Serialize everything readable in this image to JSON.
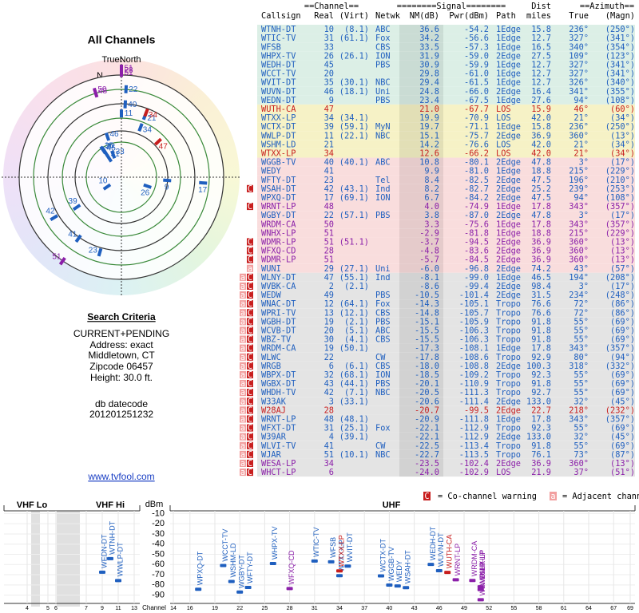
{
  "left": {
    "title": "All Channels",
    "compass": "TrueNorth",
    "north": "N",
    "criteria_title": "Search Criteria",
    "criteria": [
      "CURRENT+PENDING",
      "Address: exact",
      "Middletown, CT",
      "Zipcode 06457",
      "Height: 30.0 ft."
    ],
    "datecode_label": "db datecode",
    "datecode": "201201251232",
    "link": "www.tvfool.com"
  },
  "table": {
    "group_headers": [
      "==Channel==",
      "========Signal========",
      "Dist",
      "==Azimuth=="
    ],
    "headers": {
      "call": "Callsign",
      "real": "Real",
      "virt": "(Virt)",
      "net": "Netwk",
      "nm": "NM(dB)",
      "pwr": "Pwr(dBm)",
      "path": "Path",
      "dist": "miles",
      "true": "True",
      "magn": "(Magn)"
    },
    "rows": [
      {
        "call": "WTNH-DT",
        "real": "10",
        "virt": "(8.1)",
        "net": "ABC",
        "nm": "36.6",
        "pwr": "-54.2",
        "path": "1Edge",
        "dist": "15.8",
        "true": "236°",
        "magn": "(250°)",
        "color": "#1f5fbf",
        "warn": []
      },
      {
        "call": "WTIC-TV",
        "real": "31",
        "virt": "(61.1)",
        "net": "Fox",
        "nm": "34.2",
        "pwr": "-56.6",
        "path": "1Edge",
        "dist": "12.7",
        "true": "327°",
        "magn": "(341°)",
        "color": "#1f5fbf",
        "warn": []
      },
      {
        "call": "WFSB",
        "real": "33",
        "net": "CBS",
        "nm": "33.5",
        "pwr": "-57.3",
        "path": "1Edge",
        "dist": "16.5",
        "true": "340°",
        "magn": "(354°)",
        "color": "#1f5fbf",
        "warn": []
      },
      {
        "call": "WHPX-TV",
        "real": "26",
        "virt": "(26.1)",
        "net": "ION",
        "nm": "31.9",
        "pwr": "-59.0",
        "path": "2Edge",
        "dist": "27.5",
        "true": "109°",
        "magn": "(123°)",
        "color": "#1f5fbf",
        "warn": []
      },
      {
        "call": "WEDH-DT",
        "real": "45",
        "net": "PBS",
        "nm": "30.9",
        "pwr": "-59.9",
        "path": "1Edge",
        "dist": "12.7",
        "true": "327°",
        "magn": "(341°)",
        "color": "#1f5fbf",
        "warn": []
      },
      {
        "call": "WCCT-TV",
        "real": "20",
        "nm": "29.8",
        "pwr": "-61.0",
        "path": "1Edge",
        "dist": "12.7",
        "true": "327°",
        "magn": "(341°)",
        "color": "#1f5fbf",
        "warn": []
      },
      {
        "call": "WVIT-DT",
        "real": "35",
        "virt": "(30.1)",
        "net": "NBC",
        "nm": "29.4",
        "pwr": "-61.5",
        "path": "1Edge",
        "dist": "12.7",
        "true": "326°",
        "magn": "(340°)",
        "color": "#1f5fbf",
        "warn": []
      },
      {
        "call": "WUVN-DT",
        "real": "46",
        "virt": "(18.1)",
        "net": "Uni",
        "nm": "24.8",
        "pwr": "-66.0",
        "path": "2Edge",
        "dist": "16.4",
        "true": "341°",
        "magn": "(355°)",
        "color": "#1f5fbf",
        "warn": []
      },
      {
        "call": "WEDN-DT",
        "real": "9",
        "net": "PBS",
        "nm": "23.4",
        "pwr": "-67.5",
        "path": "1Edge",
        "dist": "27.6",
        "true": "94°",
        "magn": "(108°)",
        "color": "#1f5fbf",
        "warn": []
      },
      {
        "call": "WUTH-CA",
        "real": "47",
        "nm": "21.0",
        "pwr": "-67.7",
        "path": "LOS",
        "dist": "15.9",
        "true": "46°",
        "magn": "(60°)",
        "color": "#c81e1e",
        "warn": []
      },
      {
        "call": "WTXX-LP",
        "real": "34",
        "virt": "(34.1)",
        "nm": "19.9",
        "pwr": "-70.9",
        "path": "LOS",
        "dist": "42.0",
        "true": "21°",
        "magn": "(34°)",
        "color": "#1f5fbf",
        "warn": []
      },
      {
        "call": "WCTX-DT",
        "real": "39",
        "virt": "(59.1)",
        "net": "MyN",
        "nm": "19.7",
        "pwr": "-71.1",
        "path": "1Edge",
        "dist": "15.8",
        "true": "236°",
        "magn": "(250°)",
        "color": "#1f5fbf",
        "warn": []
      },
      {
        "call": "WWLP-DT",
        "real": "11",
        "virt": "(22.1)",
        "net": "NBC",
        "nm": "15.1",
        "pwr": "-75.7",
        "path": "2Edge",
        "dist": "36.9",
        "true": "360°",
        "magn": "(13°)",
        "color": "#1f5fbf",
        "warn": []
      },
      {
        "call": "WSHM-LD",
        "real": "21",
        "nm": "14.2",
        "pwr": "-76.6",
        "path": "LOS",
        "dist": "42.0",
        "true": "21°",
        "magn": "(34°)",
        "color": "#1f5fbf",
        "warn": []
      },
      {
        "call": "WTXX-LP",
        "real": "34",
        "nm": "12.6",
        "pwr": "-66.2",
        "path": "LOS",
        "dist": "42.0",
        "true": "21°",
        "magn": "(34°)",
        "color": "#c81e1e",
        "warn": []
      },
      {
        "call": "WGGB-TV",
        "real": "40",
        "virt": "(40.1)",
        "net": "ABC",
        "nm": "10.8",
        "pwr": "-80.1",
        "path": "2Edge",
        "dist": "47.8",
        "true": "3°",
        "magn": "(17°)",
        "color": "#1f5fbf",
        "warn": []
      },
      {
        "call": "WEDY",
        "real": "41",
        "nm": "9.9",
        "pwr": "-81.0",
        "path": "1Edge",
        "dist": "18.8",
        "true": "215°",
        "magn": "(229°)",
        "color": "#1f5fbf",
        "warn": []
      },
      {
        "call": "WFTY-DT",
        "real": "23",
        "net": "Tel",
        "nm": "8.4",
        "pwr": "-82.5",
        "path": "2Edge",
        "dist": "47.5",
        "true": "196°",
        "magn": "(210°)",
        "color": "#1f5fbf",
        "warn": []
      },
      {
        "call": "WSAH-DT",
        "real": "42",
        "virt": "(43.1)",
        "net": "Ind",
        "nm": "8.2",
        "pwr": "-82.7",
        "path": "2Edge",
        "dist": "25.2",
        "true": "239°",
        "magn": "(253°)",
        "color": "#1f5fbf",
        "warn": [
          "C"
        ]
      },
      {
        "call": "WPXQ-DT",
        "real": "17",
        "virt": "(69.1)",
        "net": "ION",
        "nm": "6.7",
        "pwr": "-84.2",
        "path": "2Edge",
        "dist": "47.5",
        "true": "94°",
        "magn": "(108°)",
        "color": "#1f5fbf",
        "warn": []
      },
      {
        "call": "WRNT-LP",
        "real": "48",
        "nm": "4.0",
        "pwr": "-74.9",
        "path": "1Edge",
        "dist": "17.8",
        "true": "343°",
        "magn": "(357°)",
        "color": "#8b1fa9",
        "warn": [
          "C"
        ]
      },
      {
        "call": "WGBY-DT",
        "real": "22",
        "virt": "(57.1)",
        "net": "PBS",
        "nm": "3.8",
        "pwr": "-87.0",
        "path": "2Edge",
        "dist": "47.8",
        "true": "3°",
        "magn": "(17°)",
        "color": "#1f5fbf",
        "warn": []
      },
      {
        "call": "WRDM-CA",
        "real": "50",
        "nm": "3.3",
        "pwr": "-75.6",
        "path": "1Edge",
        "dist": "17.8",
        "true": "343°",
        "magn": "(357°)",
        "color": "#8b1fa9",
        "warn": []
      },
      {
        "call": "WNHX-LP",
        "real": "51",
        "nm": "-2.9",
        "pwr": "-81.8",
        "path": "1Edge",
        "dist": "18.8",
        "true": "215°",
        "magn": "(229°)",
        "color": "#8b1fa9",
        "warn": []
      },
      {
        "call": "WDMR-LP",
        "real": "51",
        "virt": "(51.1)",
        "nm": "-3.7",
        "pwr": "-94.5",
        "path": "2Edge",
        "dist": "36.9",
        "true": "360°",
        "magn": "(13°)",
        "color": "#8b1fa9",
        "warn": [
          "C"
        ]
      },
      {
        "call": "WFXQ-CD",
        "real": "28",
        "nm": "-4.8",
        "pwr": "-83.6",
        "path": "2Edge",
        "dist": "36.9",
        "true": "360°",
        "magn": "(13°)",
        "color": "#8b1fa9",
        "warn": [
          "C"
        ]
      },
      {
        "call": "WDMR-LP",
        "real": "51",
        "nm": "-5.7",
        "pwr": "-84.5",
        "path": "2Edge",
        "dist": "36.9",
        "true": "360°",
        "magn": "(13°)",
        "color": "#8b1fa9",
        "warn": [
          "C"
        ]
      },
      {
        "call": "WUNI",
        "real": "29",
        "virt": "(27.1)",
        "net": "Uni",
        "nm": "-6.0",
        "pwr": "-96.8",
        "path": "2Edge",
        "dist": "74.2",
        "true": "43°",
        "magn": "(57°)",
        "color": "#1f5fbf",
        "warn": [
          "a"
        ]
      },
      {
        "call": "WLNY-DT",
        "real": "47",
        "virt": "(55.1)",
        "net": "Ind",
        "nm": "-8.1",
        "pwr": "-99.0",
        "path": "1Edge",
        "dist": "46.5",
        "true": "194°",
        "magn": "(208°)",
        "color": "#1f5fbf",
        "warn": [
          "a",
          "C"
        ]
      },
      {
        "call": "WVBK-CA",
        "real": "2",
        "virt": "(2.1)",
        "nm": "-8.6",
        "pwr": "-99.4",
        "path": "2Edge",
        "dist": "98.4",
        "true": "3°",
        "magn": "(17°)",
        "color": "#1f5fbf",
        "warn": [
          "a",
          "C"
        ]
      },
      {
        "call": "WEDW",
        "real": "49",
        "net": "PBS",
        "nm": "-10.5",
        "pwr": "-101.4",
        "path": "2Edge",
        "dist": "31.5",
        "true": "234°",
        "magn": "(248°)",
        "color": "#1f5fbf",
        "warn": [
          "a",
          "C"
        ]
      },
      {
        "call": "WNAC-DT",
        "real": "12",
        "virt": "(64.1)",
        "net": "Fox",
        "nm": "-14.3",
        "pwr": "-105.1",
        "path": "Tropo",
        "dist": "76.6",
        "true": "72°",
        "magn": "(86°)",
        "color": "#1f5fbf",
        "warn": [
          "a",
          "C"
        ]
      },
      {
        "call": "WPRI-TV",
        "real": "13",
        "virt": "(12.1)",
        "net": "CBS",
        "nm": "-14.8",
        "pwr": "-105.7",
        "path": "Tropo",
        "dist": "76.6",
        "true": "72°",
        "magn": "(86°)",
        "color": "#1f5fbf",
        "warn": [
          "a",
          "C"
        ]
      },
      {
        "call": "WGBH-DT",
        "real": "19",
        "virt": "(2.1)",
        "net": "PBS",
        "nm": "-15.1",
        "pwr": "-105.9",
        "path": "Tropo",
        "dist": "91.8",
        "true": "55°",
        "magn": "(69°)",
        "color": "#1f5fbf",
        "warn": [
          "a",
          "C"
        ]
      },
      {
        "call": "WCVB-DT",
        "real": "20",
        "virt": "(5.1)",
        "net": "ABC",
        "nm": "-15.5",
        "pwr": "-106.3",
        "path": "Tropo",
        "dist": "91.8",
        "true": "55°",
        "magn": "(69°)",
        "color": "#1f5fbf",
        "warn": [
          "a",
          "C"
        ]
      },
      {
        "call": "WBZ-TV",
        "real": "30",
        "virt": "(4.1)",
        "net": "CBS",
        "nm": "-15.5",
        "pwr": "-106.3",
        "path": "Tropo",
        "dist": "91.8",
        "true": "55°",
        "magn": "(69°)",
        "color": "#1f5fbf",
        "warn": [
          "a",
          "C"
        ]
      },
      {
        "call": "WRDM-CA",
        "real": "19",
        "virt": "(50.1)",
        "nm": "-17.3",
        "pwr": "-108.1",
        "path": "1Edge",
        "dist": "17.8",
        "true": "343°",
        "magn": "(357°)",
        "color": "#1f5fbf",
        "warn": [
          "a",
          "C"
        ]
      },
      {
        "call": "WLWC",
        "real": "22",
        "net": "CW",
        "nm": "-17.8",
        "pwr": "-108.6",
        "path": "Tropo",
        "dist": "92.9",
        "true": "80°",
        "magn": "(94°)",
        "color": "#1f5fbf",
        "warn": [
          "a",
          "C"
        ]
      },
      {
        "call": "WRGB",
        "real": "6",
        "virt": "(6.1)",
        "net": "CBS",
        "nm": "-18.0",
        "pwr": "-108.8",
        "path": "2Edge",
        "dist": "100.3",
        "true": "318°",
        "magn": "(332°)",
        "color": "#1f5fbf",
        "warn": [
          "a",
          "C"
        ]
      },
      {
        "call": "WBPX-DT",
        "real": "32",
        "virt": "(68.1)",
        "net": "ION",
        "nm": "-18.5",
        "pwr": "-109.2",
        "path": "Tropo",
        "dist": "92.3",
        "true": "55°",
        "magn": "(69°)",
        "color": "#1f5fbf",
        "warn": [
          "a",
          "C"
        ]
      },
      {
        "call": "WGBX-DT",
        "real": "43",
        "virt": "(44.1)",
        "net": "PBS",
        "nm": "-20.1",
        "pwr": "-110.9",
        "path": "Tropo",
        "dist": "91.8",
        "true": "55°",
        "magn": "(69°)",
        "color": "#1f5fbf",
        "warn": [
          "a",
          "C"
        ]
      },
      {
        "call": "WHDH-TV",
        "real": "42",
        "virt": "(7.1)",
        "net": "NBC",
        "nm": "-20.5",
        "pwr": "-111.3",
        "path": "Tropo",
        "dist": "92.7",
        "true": "55°",
        "magn": "(69°)",
        "color": "#1f5fbf",
        "warn": [
          "a",
          "C"
        ]
      },
      {
        "call": "W33AK",
        "real": "3",
        "virt": "(33.1)",
        "nm": "-20.6",
        "pwr": "-111.4",
        "path": "2Edge",
        "dist": "133.0",
        "true": "32°",
        "magn": "(45°)",
        "color": "#1f5fbf",
        "warn": [
          "a",
          "C"
        ]
      },
      {
        "call": "W28AJ",
        "real": "28",
        "nm": "-20.7",
        "pwr": "-99.5",
        "path": "2Edge",
        "dist": "22.7",
        "true": "218°",
        "magn": "(232°)",
        "color": "#c81e1e",
        "warn": [
          "a",
          "C"
        ]
      },
      {
        "call": "WRNT-LP",
        "real": "48",
        "virt": "(48.1)",
        "nm": "-20.9",
        "pwr": "-111.8",
        "path": "1Edge",
        "dist": "17.8",
        "true": "343°",
        "magn": "(357°)",
        "color": "#1f5fbf",
        "warn": [
          "a",
          "C"
        ]
      },
      {
        "call": "WFXT-DT",
        "real": "31",
        "virt": "(25.1)",
        "net": "Fox",
        "nm": "-22.1",
        "pwr": "-112.9",
        "path": "Tropo",
        "dist": "92.3",
        "true": "55°",
        "magn": "(69°)",
        "color": "#1f5fbf",
        "warn": [
          "a",
          "C"
        ]
      },
      {
        "call": "W39AR",
        "real": "4",
        "virt": "(39.1)",
        "nm": "-22.1",
        "pwr": "-112.9",
        "path": "2Edge",
        "dist": "133.0",
        "true": "32°",
        "magn": "(45°)",
        "color": "#1f5fbf",
        "warn": [
          "a",
          "C"
        ]
      },
      {
        "call": "WLVI-TV",
        "real": "41",
        "net": "CW",
        "nm": "-22.5",
        "pwr": "-113.4",
        "path": "Tropo",
        "dist": "91.8",
        "true": "55°",
        "magn": "(69°)",
        "color": "#1f5fbf",
        "warn": [
          "a",
          "C"
        ]
      },
      {
        "call": "WJAR",
        "real": "51",
        "virt": "(10.1)",
        "net": "NBC",
        "nm": "-22.7",
        "pwr": "-113.5",
        "path": "Tropo",
        "dist": "76.1",
        "true": "73°",
        "magn": "(87°)",
        "color": "#1f5fbf",
        "warn": [
          "a",
          "C"
        ]
      },
      {
        "call": "WESA-LP",
        "real": "34",
        "nm": "-23.5",
        "pwr": "-102.4",
        "path": "2Edge",
        "dist": "36.9",
        "true": "360°",
        "magn": "(13°)",
        "color": "#8b1fa9",
        "warn": [
          "a",
          "C"
        ]
      },
      {
        "call": "WHCT-LP",
        "real": "6",
        "nm": "-24.0",
        "pwr": "-102.9",
        "path": "LOS",
        "dist": "21.9",
        "true": "37°",
        "magn": "(51°)",
        "color": "#8b1fa9",
        "warn": [
          "a",
          "C"
        ]
      }
    ]
  },
  "legend": {
    "co_icon": "C",
    "co": "= Co-channel warning",
    "adj_icon": "a",
    "adj": "= Adjacent channel warning"
  },
  "spectrum": {
    "bands": [
      "VHF Lo",
      "VHF Hi",
      "UHF"
    ],
    "y_label": "dBm",
    "ylim": [
      -5,
      -95
    ],
    "yticks": [
      -10,
      -20,
      -30,
      -40,
      -50,
      -60,
      -70,
      -80,
      -90
    ],
    "channel_label": "Channel",
    "channel_ticks": [
      4,
      5,
      6,
      7,
      9,
      11,
      13,
      14,
      16,
      19,
      22,
      25,
      28,
      31,
      34,
      37,
      40,
      43,
      46,
      49,
      52,
      55,
      58,
      61,
      64,
      67,
      69
    ]
  }
}
